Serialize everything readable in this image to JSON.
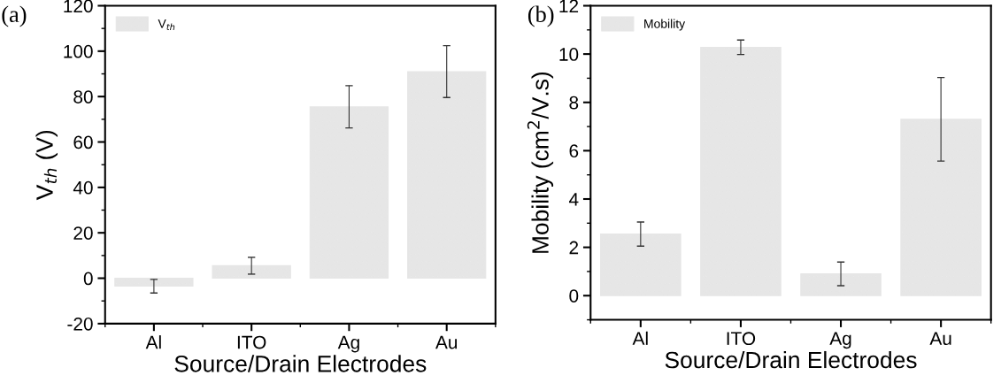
{
  "chart_data": [
    {
      "type": "bar",
      "xlabel": "Source/Drain Electrodes",
      "ylabel": "V$_{th}$ (V)",
      "annotations": [
        "(a)"
      ],
      "categories": [
        "Al",
        "ITO",
        "Ag",
        "Au"
      ],
      "series": [
        {
          "name": "V$_{th}$",
          "color": "#e6e6e6",
          "values": [
            -3.5,
            5.5,
            75.5,
            91
          ],
          "errors": [
            3,
            3.7,
            9.3,
            11.4
          ]
        }
      ],
      "ylim": [
        -20,
        120
      ],
      "yticks": [
        -20,
        0,
        20,
        40,
        60,
        80,
        100,
        120
      ],
      "grid": false,
      "legend": "top left"
    },
    {
      "type": "bar",
      "xlabel": "Source/Drain Electrodes",
      "ylabel": "Mobility (cm$^{2}$/V.s)",
      "annotations": [
        "(b)"
      ],
      "categories": [
        "Al",
        "ITO",
        "Ag",
        "Au"
      ],
      "series": [
        {
          "name": "Mobility",
          "color": "#e6e6e6",
          "values": [
            2.55,
            10.28,
            0.9,
            7.3
          ],
          "errors": [
            0.5,
            0.3,
            0.49,
            1.73
          ]
        }
      ],
      "ylim": [
        -1,
        12
      ],
      "yticks": [
        0,
        2,
        4,
        6,
        8,
        10,
        12
      ],
      "grid": false,
      "legend": "top left"
    }
  ]
}
